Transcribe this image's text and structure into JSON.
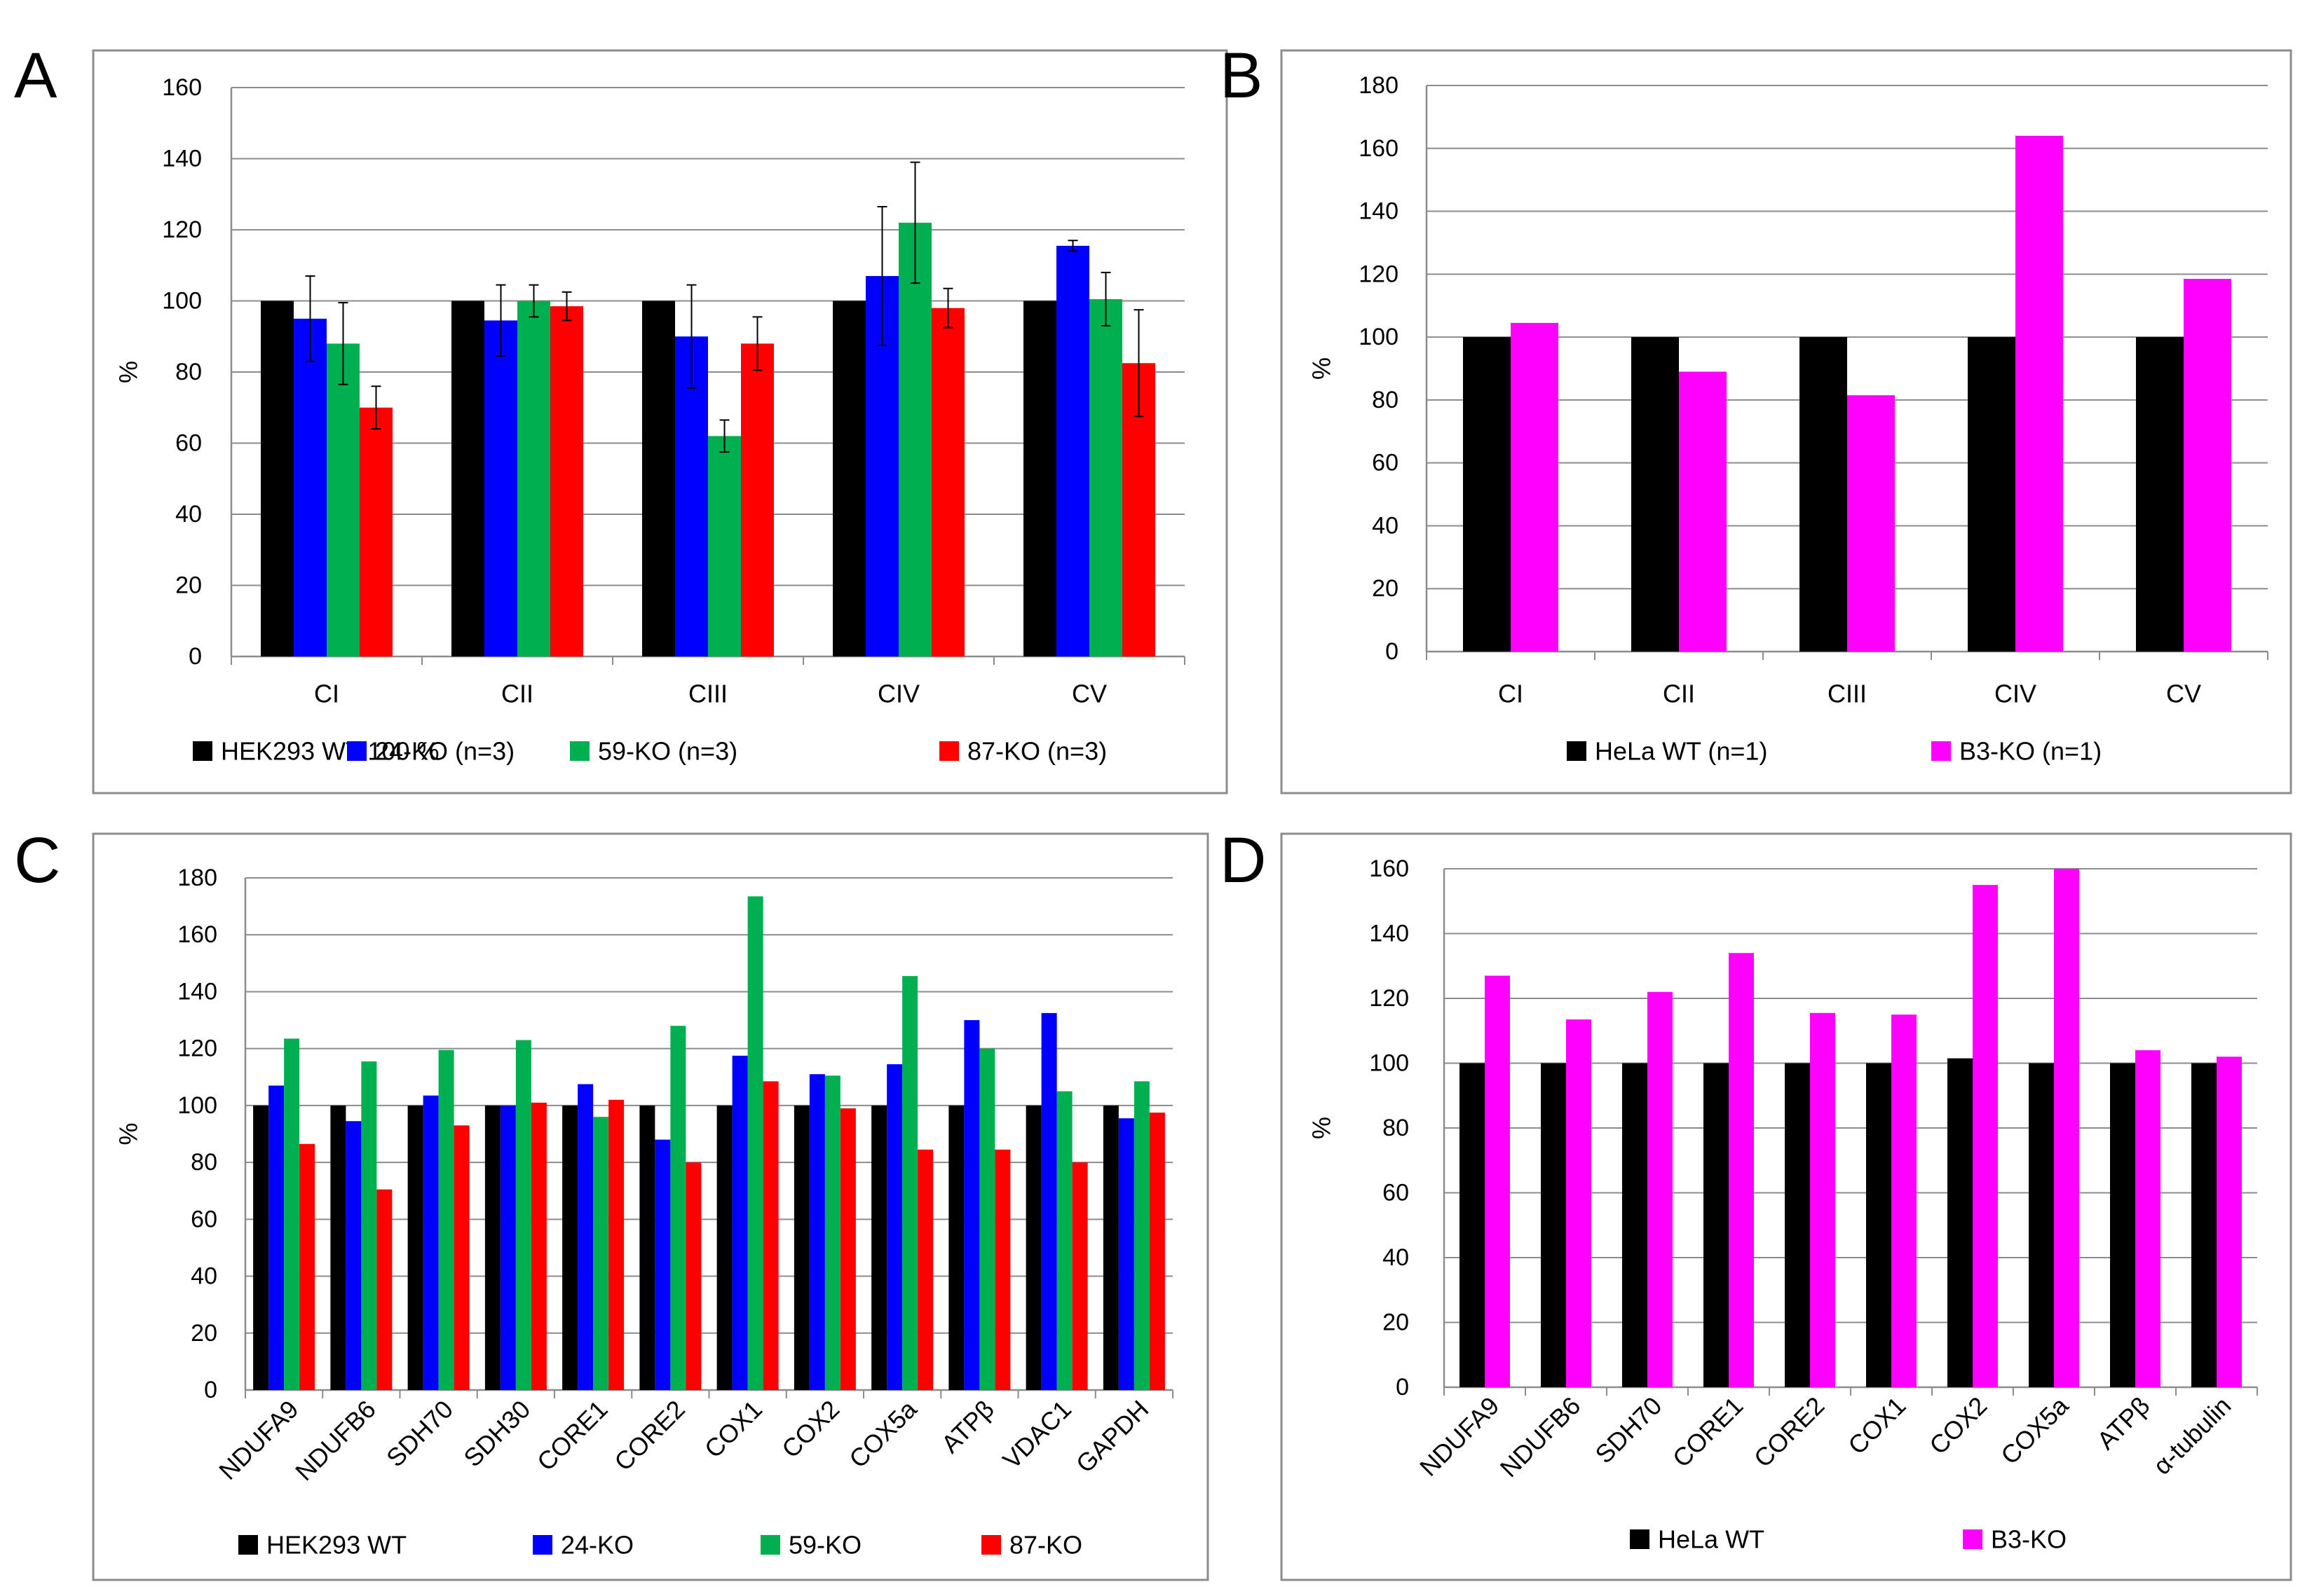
{
  "chart_data": [
    {
      "panel": "A",
      "type": "bar",
      "ylabel": "%",
      "ylim": [
        0,
        160
      ],
      "yticks": [
        0,
        20,
        40,
        60,
        80,
        100,
        120,
        140,
        160
      ],
      "grid": true,
      "legend": "bottom",
      "categories": [
        "CI",
        "CII",
        "CIII",
        "CIV",
        "CV"
      ],
      "series": [
        {
          "name": "HEK293 WT 100 %",
          "color": "#000000",
          "values": [
            100,
            100,
            100,
            100,
            100
          ],
          "errors": [
            null,
            null,
            null,
            null,
            null
          ]
        },
        {
          "name": "24-KO (n=3)",
          "color": "#0000ff",
          "values": [
            95,
            94.5,
            90,
            107,
            115.5
          ],
          "errors": [
            12,
            10,
            14.5,
            19.5,
            1.5
          ]
        },
        {
          "name": "59-KO (n=3)",
          "color": "#00b050",
          "values": [
            88,
            100,
            62,
            122,
            100.5
          ],
          "errors": [
            11.5,
            4.5,
            4.5,
            17,
            7.5
          ]
        },
        {
          "name": "87-KO (n=3)",
          "color": "#ff0000",
          "values": [
            70,
            98.5,
            88,
            98,
            82.5
          ],
          "errors": [
            6,
            4,
            7.5,
            5.5,
            15
          ]
        }
      ]
    },
    {
      "panel": "B",
      "type": "bar",
      "ylabel": "%",
      "ylim": [
        0,
        180
      ],
      "yticks": [
        0,
        20,
        40,
        60,
        80,
        100,
        120,
        140,
        160,
        180
      ],
      "grid": true,
      "legend": "bottom",
      "categories": [
        "CI",
        "CII",
        "CIII",
        "CIV",
        "CV"
      ],
      "series": [
        {
          "name": "HeLa WT (n=1)",
          "color": "#000000",
          "values": [
            100,
            100,
            100,
            100,
            100
          ]
        },
        {
          "name": "B3-KO (n=1)",
          "color": "#ff00ff",
          "values": [
            104.5,
            89,
            81.5,
            164,
            118.5
          ]
        }
      ]
    },
    {
      "panel": "C",
      "type": "bar",
      "ylabel": "%",
      "ylim": [
        0,
        180
      ],
      "yticks": [
        0,
        20,
        40,
        60,
        80,
        100,
        120,
        140,
        160,
        180
      ],
      "grid": true,
      "legend": "bottom",
      "categories": [
        "NDUFA9",
        "NDUFB6",
        "SDH70",
        "SDH30",
        "CORE1",
        "CORE2",
        "COX1",
        "COX2",
        "COX5a",
        "ATPβ",
        "VDAC1",
        "GAPDH"
      ],
      "series": [
        {
          "name": "HEK293 WT",
          "color": "#000000",
          "values": [
            100,
            100,
            100,
            100,
            100,
            100,
            100,
            100,
            100,
            100,
            100,
            100
          ]
        },
        {
          "name": "24-KO",
          "color": "#0000ff",
          "values": [
            107,
            94.5,
            103.5,
            100,
            107.5,
            88,
            117.5,
            111,
            114.5,
            130,
            132.5,
            95.5
          ]
        },
        {
          "name": "59-KO",
          "color": "#00b050",
          "values": [
            123.5,
            115.5,
            119.5,
            123,
            96,
            128,
            173.5,
            110.5,
            145.5,
            120,
            105,
            108.5
          ]
        },
        {
          "name": "87-KO",
          "color": "#ff0000",
          "values": [
            86.5,
            70.5,
            93,
            101,
            102,
            80,
            108.5,
            99,
            84.5,
            84.5,
            80,
            97.5
          ]
        }
      ]
    },
    {
      "panel": "D",
      "type": "bar",
      "ylabel": "%",
      "ylim": [
        0,
        160
      ],
      "yticks": [
        0,
        20,
        40,
        60,
        80,
        100,
        120,
        140,
        160
      ],
      "grid": true,
      "legend": "bottom",
      "categories": [
        "NDUFA9",
        "NDUFB6",
        "SDH70",
        "CORE1",
        "CORE2",
        "COX1",
        "COX2",
        "COX5a",
        "ATPβ",
        "α-tubulin"
      ],
      "series": [
        {
          "name": "HeLa WT",
          "color": "#000000",
          "values": [
            100,
            100,
            100,
            100,
            100,
            100,
            101.5,
            100,
            100,
            100
          ]
        },
        {
          "name": "B3-KO",
          "color": "#ff00ff",
          "values": [
            127,
            113.5,
            122,
            134,
            115.5,
            115,
            155,
            160,
            104,
            102
          ]
        }
      ]
    }
  ]
}
